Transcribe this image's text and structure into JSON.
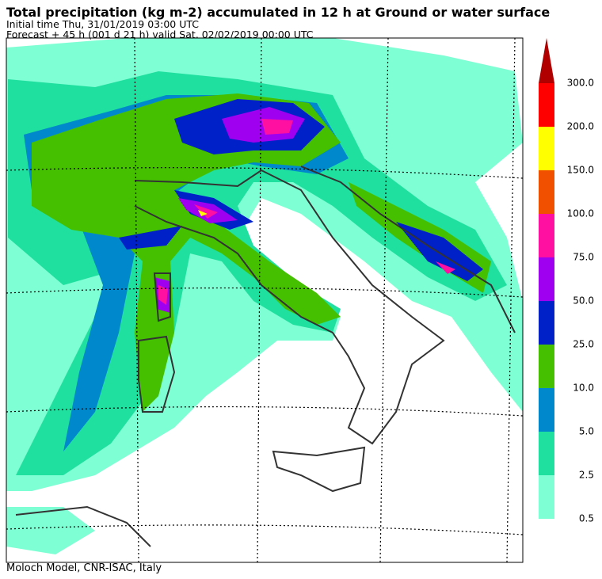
{
  "header": {
    "title": "Total precipitation (kg m-2) accumulated in  12 h at Ground or water surface",
    "initial_time": "Initial time  Thu, 31/01/2019  03:00 UTC",
    "forecast": "Forecast  +  45 h  (001 d 21 h)  valid Sat, 02/02/2019 00:00 UTC"
  },
  "legend": {
    "labels": [
      "0.5",
      "2.5",
      "5.0",
      "10.0",
      "25.0",
      "50.0",
      "75.0",
      "100.0",
      "150.0",
      "200.0",
      "300.0"
    ],
    "colors": [
      "#7fffd4",
      "#20e0a0",
      "#0088cc",
      "#44c000",
      "#0020c8",
      "#a000f0",
      "#ff10a0",
      "#f05000",
      "#ffff00",
      "#ff0000"
    ],
    "arrow_color": "#b00000"
  },
  "footer": "Moloch Model, CNR-ISAC, Italy"
}
